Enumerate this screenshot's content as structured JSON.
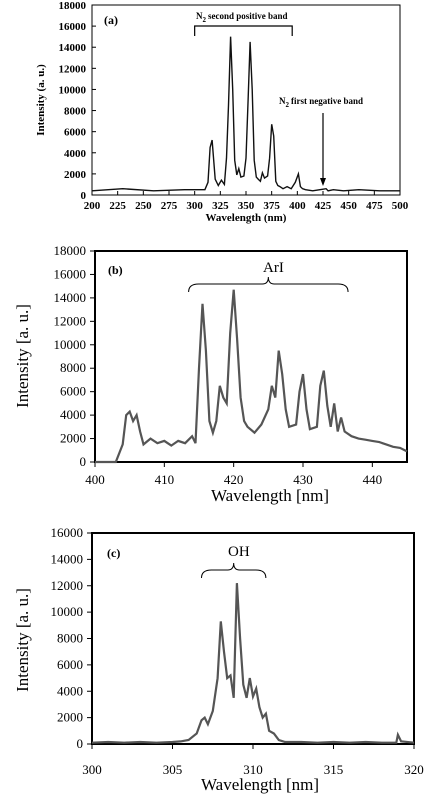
{
  "chart_data": [
    {
      "panel": "(a)",
      "type": "line",
      "ylabel": "Intensity (a. u.)",
      "xlabel": "Wavelength (nm)",
      "xlim": [
        200,
        500
      ],
      "ylim": [
        0,
        18000
      ],
      "xticks": [
        "200",
        "225",
        "250",
        "275",
        "300",
        "325",
        "350",
        "375",
        "400",
        "425",
        "450",
        "475",
        "500"
      ],
      "yticks": [
        "0",
        "2000",
        "4000",
        "6000",
        "8000",
        "10000",
        "12000",
        "14000",
        "16000",
        "18000"
      ],
      "annotations": {
        "n2_second_sub": "2",
        "n2_second_text": "second positive band",
        "n2_first_sub": "2",
        "n2_first_text": "first negative band"
      },
      "bracket_range": [
        300,
        395
      ],
      "arrow_x": 425,
      "x": [
        200,
        230,
        260,
        290,
        300,
        305,
        310,
        313,
        315,
        317,
        320,
        323,
        326,
        329,
        331,
        333,
        335,
        337,
        339,
        341,
        343,
        345,
        348,
        350,
        352,
        354,
        356,
        358,
        360,
        362,
        364,
        366,
        368,
        371,
        373,
        375,
        377,
        379,
        381,
        383,
        386,
        390,
        394,
        398,
        401,
        403,
        405,
        408,
        415,
        422,
        428,
        430,
        435,
        445,
        460,
        480,
        500
      ],
      "y": [
        400,
        600,
        400,
        500,
        500,
        500,
        500,
        1200,
        4500,
        5200,
        1500,
        900,
        1400,
        1000,
        3500,
        8500,
        15000,
        10000,
        3300,
        1900,
        2500,
        1700,
        1800,
        3500,
        9000,
        14500,
        10000,
        3300,
        1700,
        1500,
        1300,
        2100,
        1600,
        1800,
        3500,
        6700,
        5600,
        1300,
        900,
        800,
        600,
        800,
        600,
        1200,
        2000,
        800,
        600,
        500,
        400,
        500,
        600,
        400,
        500,
        400,
        500,
        400,
        400
      ]
    },
    {
      "panel": "(b)",
      "type": "line",
      "ylabel": "Intensity [a. u.]",
      "xlabel": "Wavelength [nm]",
      "xlim": [
        400,
        445
      ],
      "ylim": [
        0,
        18000
      ],
      "xticks": [
        "400",
        "410",
        "420",
        "430",
        "440"
      ],
      "yticks": [
        "0",
        "2000",
        "4000",
        "6000",
        "8000",
        "10000",
        "12000",
        "14000",
        "16000",
        "18000"
      ],
      "annotation": "ArI",
      "bracket_range": [
        413.5,
        436.5
      ],
      "x": [
        400,
        401,
        402,
        403,
        404,
        404.5,
        405,
        405.5,
        406,
        406.5,
        407,
        408,
        409,
        410,
        411,
        412,
        413,
        414,
        414.5,
        415,
        415.5,
        416,
        416.5,
        417,
        417.5,
        418,
        418.5,
        419,
        419.5,
        420,
        420.5,
        421,
        421.5,
        422,
        423,
        424,
        425,
        425.5,
        426,
        426.5,
        427,
        427.5,
        428,
        429,
        429.5,
        430,
        430.5,
        431,
        432,
        432.5,
        433,
        433.5,
        434,
        434.5,
        435,
        435.5,
        436,
        437,
        438,
        439,
        440,
        441,
        442,
        443,
        444,
        445
      ],
      "y": [
        0,
        0,
        0,
        0,
        1500,
        4000,
        4300,
        3500,
        4000,
        2600,
        1500,
        2000,
        1600,
        1800,
        1400,
        1800,
        1600,
        2200,
        1600,
        8000,
        13500,
        9500,
        3500,
        2500,
        3500,
        6500,
        5500,
        5000,
        11000,
        14700,
        10500,
        5500,
        3500,
        3000,
        2500,
        3200,
        4500,
        6500,
        5500,
        9500,
        7500,
        4500,
        3000,
        3200,
        6000,
        7500,
        4500,
        2800,
        3000,
        6500,
        7800,
        4800,
        3000,
        5000,
        2600,
        3800,
        2600,
        2200,
        2000,
        1900,
        1800,
        1700,
        1500,
        1300,
        1200,
        900
      ]
    },
    {
      "panel": "(c)",
      "type": "line",
      "ylabel": "Intensity [a. u.]",
      "xlabel": "Wavelength [nm]",
      "xlim": [
        300,
        320
      ],
      "ylim": [
        0,
        16000
      ],
      "xticks": [
        "300",
        "305",
        "310",
        "315",
        "320"
      ],
      "yticks": [
        "0",
        "2000",
        "4000",
        "6000",
        "8000",
        "10000",
        "12000",
        "14000",
        "16000"
      ],
      "annotation": "OH",
      "bracket_range": [
        306.8,
        310.8
      ],
      "x": [
        300,
        301,
        302,
        303,
        304,
        305,
        305.5,
        306,
        306.5,
        306.8,
        307.0,
        307.2,
        307.5,
        307.8,
        308.0,
        308.2,
        308.4,
        308.6,
        308.8,
        309.0,
        309.2,
        309.4,
        309.6,
        309.8,
        310.0,
        310.2,
        310.4,
        310.6,
        310.8,
        311.0,
        311.3,
        311.6,
        312,
        313,
        314,
        315,
        316,
        317,
        318,
        318.9,
        319,
        319.2,
        320
      ],
      "y": [
        100,
        150,
        100,
        150,
        100,
        150,
        200,
        300,
        800,
        1800,
        2000,
        1500,
        2500,
        5000,
        9300,
        7000,
        5000,
        5200,
        3500,
        12200,
        8000,
        4500,
        3500,
        5000,
        3600,
        4200,
        2800,
        2000,
        2300,
        1000,
        800,
        300,
        150,
        150,
        100,
        150,
        100,
        150,
        100,
        100,
        700,
        200,
        100
      ]
    }
  ]
}
